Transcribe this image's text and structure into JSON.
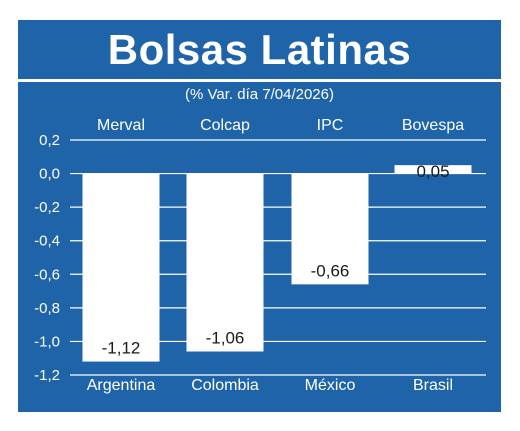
{
  "colors": {
    "background": "#1f64a8",
    "bars": "#ffffff",
    "text": "#ffffff",
    "label_text": "#1a1a1a"
  },
  "chart_data": {
    "type": "bar",
    "title": "Bolsas Latinas",
    "subtitle": "(% Var. día 7/04/2026)",
    "indices": [
      "Merval",
      "Colcap",
      "IPC",
      "Bovespa"
    ],
    "categories": [
      "Argentina",
      "Colombia",
      "México",
      "Brasil"
    ],
    "values": [
      -1.12,
      -1.06,
      -0.66,
      0.05
    ],
    "value_labels": [
      "-1,12",
      "-1,06",
      "-0,66",
      "0,05"
    ],
    "ylim": [
      -1.2,
      0.2
    ],
    "y_ticks": [
      0.2,
      0.0,
      -0.2,
      -0.4,
      -0.6,
      -0.8,
      -1.0,
      -1.2
    ],
    "y_tick_labels": [
      "0,2",
      "0,0",
      "-0,2",
      "-0,4",
      "-0,6",
      "-0,8",
      "-1,0",
      "-1,2"
    ],
    "grid": true,
    "xlabel": "",
    "ylabel": ""
  }
}
